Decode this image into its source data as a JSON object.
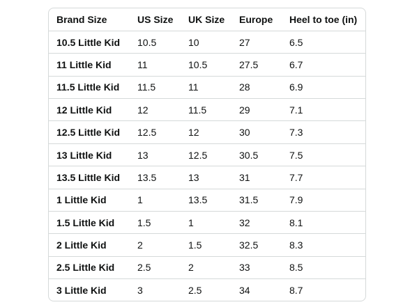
{
  "size_chart": {
    "headers": [
      "Brand Size",
      "US Size",
      "UK Size",
      "Europe",
      "Heel to toe (in)"
    ],
    "rows": [
      [
        "10.5 Little Kid",
        "10.5",
        "10",
        "27",
        "6.5"
      ],
      [
        "11 Little Kid",
        "11",
        "10.5",
        "27.5",
        "6.7"
      ],
      [
        "11.5 Little Kid",
        "11.5",
        "11",
        "28",
        "6.9"
      ],
      [
        "12 Little Kid",
        "12",
        "11.5",
        "29",
        "7.1"
      ],
      [
        "12.5 Little Kid",
        "12.5",
        "12",
        "30",
        "7.3"
      ],
      [
        "13 Little Kid",
        "13",
        "12.5",
        "30.5",
        "7.5"
      ],
      [
        "13.5 Little Kid",
        "13.5",
        "13",
        "31",
        "7.7"
      ],
      [
        "1 Little Kid",
        "1",
        "13.5",
        "31.5",
        "7.9"
      ],
      [
        "1.5 Little Kid",
        "1.5",
        "1",
        "32",
        "8.1"
      ],
      [
        "2 Little Kid",
        "2",
        "1.5",
        "32.5",
        "8.3"
      ],
      [
        "2.5 Little Kid",
        "2.5",
        "2",
        "33",
        "8.5"
      ],
      [
        "3 Little Kid",
        "3",
        "2.5",
        "34",
        "8.7"
      ]
    ]
  }
}
